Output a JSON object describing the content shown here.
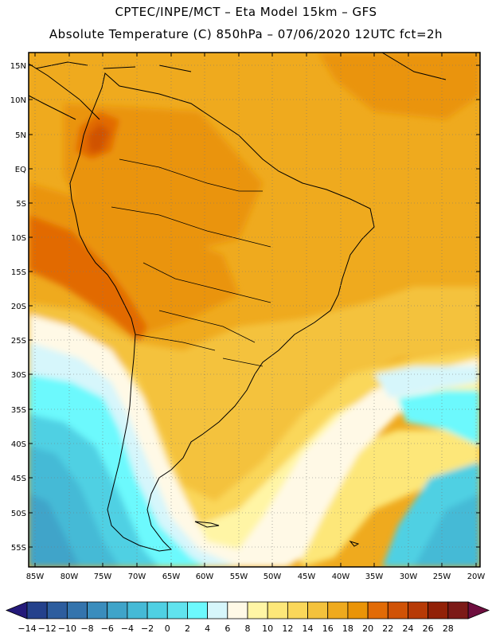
{
  "header": {
    "line1": "CPTEC/INPE/MCT –  Eta Model 15km – GFS",
    "line2": "Absolute Temperature (C) 850hPa – 07/06/2020 12UTC fct=2h"
  },
  "axes": {
    "lat_labels": [
      "15N",
      "10N",
      "5N",
      "EQ",
      "5S",
      "10S",
      "15S",
      "20S",
      "25S",
      "30S",
      "35S",
      "40S",
      "45S",
      "50S",
      "55S"
    ],
    "lon_labels": [
      "85W",
      "80W",
      "75W",
      "70W",
      "65W",
      "60W",
      "55W",
      "50W",
      "45W",
      "40W",
      "35W",
      "30W",
      "25W",
      "20W"
    ]
  },
  "colorbar": {
    "labels": [
      "-14",
      "-12",
      "-10",
      "-8",
      "-6",
      "-4",
      "-2",
      "0",
      "2",
      "4",
      "6",
      "8",
      "10",
      "12",
      "14",
      "16",
      "18",
      "20",
      "22",
      "24",
      "26",
      "28"
    ],
    "colors": [
      "#24418c",
      "#2d5d9e",
      "#3474ad",
      "#3a8dbd",
      "#3fa4c9",
      "#45bad6",
      "#4fd0e3",
      "#60e3ee",
      "#6cf9fd",
      "#d6f6fb",
      "#fff9e6",
      "#fff5a5",
      "#fde779",
      "#fad75a",
      "#f4c23c",
      "#efaa1e",
      "#ea9407",
      "#e26b06",
      "#d05206",
      "#b73a06",
      "#922107",
      "#7c1a17"
    ],
    "under_color": "#241a7a",
    "over_color": "#6e0e3e"
  }
}
